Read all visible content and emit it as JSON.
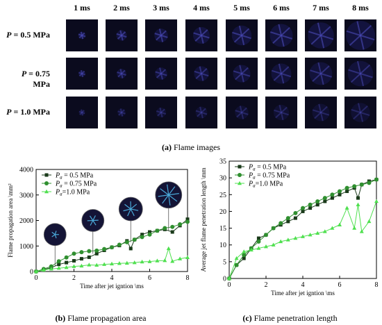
{
  "flame_images": {
    "columns": [
      "1 ms",
      "2 ms",
      "3 ms",
      "4 ms",
      "5 ms",
      "6 ms",
      "7 ms",
      "8 ms"
    ],
    "rows": [
      {
        "p_prefix": "P",
        "label": " = 0.5 MPa"
      },
      {
        "p_prefix": "P",
        "label": " = 0.75 MPa"
      },
      {
        "p_prefix": "P",
        "label": " = 1.0 MPa"
      }
    ],
    "caption_tag": "(a)",
    "caption_text": " Flame images"
  },
  "captions": {
    "b_tag": "(b)",
    "b_text": " Flame propagation area",
    "c_tag": "(c)",
    "c_text": " Flame penetration length"
  },
  "colors": {
    "s05": "#1a3a1a",
    "s075": "#2f8f2f",
    "s10": "#4fe04f"
  },
  "chart_data": [
    {
      "type": "line",
      "xlabel": "Time after jet igntion \\ms",
      "ylabel": "Flame propagation area \\mm²",
      "xlim": [
        0,
        8
      ],
      "ylim": [
        0,
        4000
      ],
      "xticks": [
        0,
        2,
        4,
        6,
        8
      ],
      "yticks": [
        0,
        1000,
        2000,
        3000,
        4000
      ],
      "legend_position": "top-left",
      "series": [
        {
          "name": "P_a = 0.5 MPa",
          "marker": "square",
          "x": [
            0,
            0.4,
            0.8,
            1.2,
            1.6,
            2,
            2.4,
            2.8,
            3.2,
            3.6,
            4,
            4.4,
            4.8,
            5,
            5.2,
            5.6,
            6,
            6.4,
            6.8,
            7.2,
            7.6,
            8
          ],
          "y": [
            0,
            80,
            150,
            280,
            350,
            420,
            500,
            560,
            700,
            830,
            950,
            1020,
            1200,
            900,
            1250,
            1450,
            1550,
            1600,
            1650,
            1550,
            1800,
            2050
          ]
        },
        {
          "name": "P_a = 0.75 MPa",
          "marker": "circle",
          "x": [
            0,
            0.4,
            0.8,
            1.2,
            1.6,
            2,
            2.4,
            2.8,
            3.2,
            3.6,
            4,
            4.4,
            4.8,
            5.2,
            5.6,
            6,
            6.4,
            6.8,
            7.2,
            7.6,
            8
          ],
          "y": [
            0,
            100,
            200,
            400,
            550,
            700,
            760,
            800,
            820,
            880,
            950,
            1050,
            1150,
            1250,
            1350,
            1450,
            1600,
            1700,
            1750,
            1850,
            1950
          ]
        },
        {
          "name": "P_a = 1.0 MPa",
          "marker": "triangle",
          "x": [
            0,
            0.4,
            0.8,
            1.2,
            1.6,
            2,
            2.4,
            2.8,
            3.2,
            3.6,
            4,
            4.4,
            4.8,
            5.2,
            5.6,
            6,
            6.4,
            6.8,
            7,
            7.2,
            7.6,
            8
          ],
          "y": [
            0,
            60,
            100,
            130,
            160,
            200,
            220,
            260,
            250,
            280,
            300,
            320,
            330,
            350,
            380,
            390,
            420,
            430,
            900,
            400,
            500,
            550
          ]
        }
      ]
    },
    {
      "type": "line",
      "xlabel": "Time after jet igntion \\ms",
      "ylabel": "Average jet flame penetration length \\mm",
      "xlim": [
        0,
        8
      ],
      "ylim": [
        0,
        35
      ],
      "xticks": [
        0,
        2,
        4,
        6,
        8
      ],
      "yticks": [
        0,
        5,
        10,
        15,
        20,
        25,
        30,
        35
      ],
      "legend_position": "top-left",
      "series": [
        {
          "name": "P_a = 0.5 MPa",
          "marker": "square",
          "x": [
            0,
            0.4,
            0.8,
            1.2,
            1.6,
            2,
            2.4,
            2.8,
            3.2,
            3.6,
            4,
            4.4,
            4.8,
            5.2,
            5.6,
            6,
            6.4,
            6.8,
            7,
            7.2,
            7.6,
            8
          ],
          "y": [
            0,
            4,
            6,
            9,
            12,
            13,
            15,
            16,
            17,
            18,
            20,
            21,
            22,
            23,
            24,
            25,
            26,
            27,
            24,
            28,
            29,
            29.5
          ]
        },
        {
          "name": "P_a = 0.75 MPa",
          "marker": "circle",
          "x": [
            0,
            0.4,
            0.8,
            1.2,
            1.6,
            2,
            2.4,
            2.8,
            3.2,
            3.6,
            4,
            4.4,
            4.8,
            5.2,
            5.6,
            6,
            6.4,
            6.8,
            7.2,
            7.6,
            8
          ],
          "y": [
            0,
            4,
            7,
            9,
            11,
            13,
            15,
            16.5,
            18,
            19.5,
            21,
            22,
            23,
            24,
            25,
            26,
            27,
            27.5,
            28,
            28.5,
            29.5
          ]
        },
        {
          "name": "P_a = 1.0 MPa",
          "marker": "triangle",
          "x": [
            0,
            0.4,
            0.8,
            1.2,
            1.6,
            2,
            2.4,
            2.8,
            3.2,
            3.6,
            4,
            4.4,
            4.8,
            5.2,
            5.6,
            6,
            6.4,
            6.8,
            7,
            7.2,
            7.6,
            8
          ],
          "y": [
            0,
            6,
            8,
            8.5,
            9,
            9.5,
            10,
            11,
            11.5,
            12,
            12.5,
            13,
            13.5,
            14,
            15,
            16,
            21,
            15,
            22,
            14,
            17,
            23
          ]
        }
      ],
      "legend_labels": [
        "P_a = 0.5 MPa",
        "P_a = 0.75 MPa",
        "P_a = 1.0 MPa"
      ]
    }
  ],
  "legend": {
    "sub": "a",
    "items": [
      " = 0.5 MPa",
      " = 0.75 MPa",
      "=1.0 MPa"
    ]
  },
  "tick_text": {
    "b_y": [
      "0",
      "1000",
      "2000",
      "3000",
      "4000"
    ],
    "c_y": [
      "0",
      "5",
      "10",
      "15",
      "20",
      "25",
      "30",
      "35"
    ],
    "x": [
      "0",
      "2",
      "4",
      "6",
      "8"
    ]
  }
}
